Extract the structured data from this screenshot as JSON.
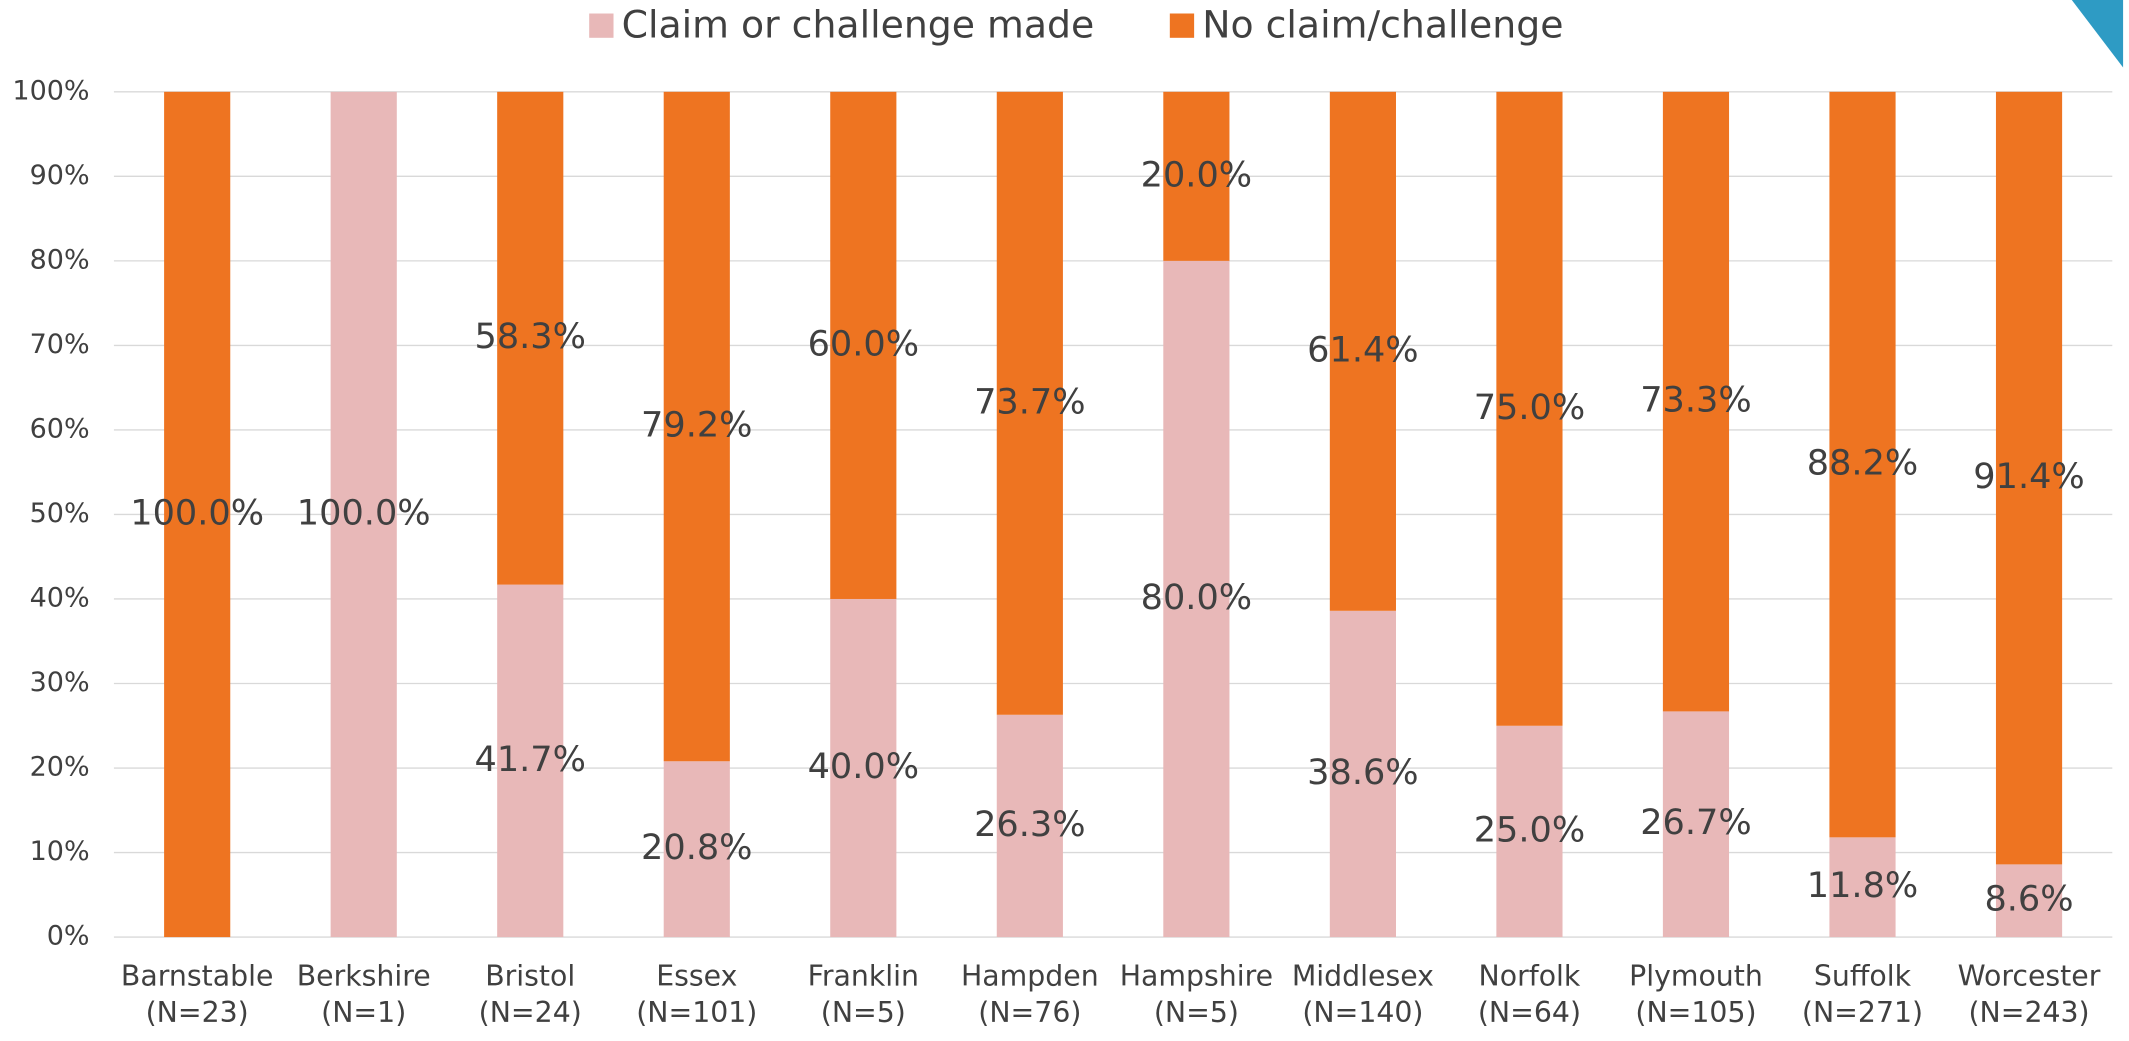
{
  "chart_data": {
    "type": "stacked_bar",
    "categories": [
      [
        "Barnstable",
        "(N=23)"
      ],
      [
        "Berkshire",
        "(N=1)"
      ],
      [
        "Bristol",
        "(N=24)"
      ],
      [
        "Essex",
        "(N=101)"
      ],
      [
        "Franklin",
        "(N=5)"
      ],
      [
        "Hampden",
        "(N=76)"
      ],
      [
        "Hampshire",
        "(N=5)"
      ],
      [
        "Middlesex",
        "(N=140)"
      ],
      [
        "Norfolk",
        "(N=64)"
      ],
      [
        "Plymouth",
        "(N=105)"
      ],
      [
        "Suffolk",
        "(N=271)"
      ],
      [
        "Worcester",
        "(N=243)"
      ]
    ],
    "series": [
      {
        "name": "Claim or challenge made",
        "color": "#e8b8b8",
        "values": [
          0,
          100,
          41.7,
          20.8,
          40,
          26.3,
          80,
          38.6,
          25,
          26.7,
          11.8,
          8.6
        ],
        "value_labels": [
          null,
          "100.0%",
          "41.7%",
          "20.8%",
          "40.0%",
          "26.3%",
          "80.0%",
          "38.6%",
          "25.0%",
          "26.7%",
          "11.8%",
          "8.6%"
        ]
      },
      {
        "name": "No claim/challenge",
        "color": "#ee7421",
        "values": [
          100,
          0,
          58.3,
          79.2,
          60,
          73.7,
          20,
          61.4,
          75,
          73.3,
          88.2,
          91.4
        ],
        "value_labels": [
          "100.0%",
          null,
          "58.3%",
          "79.2%",
          "60.0%",
          "73.7%",
          "20.0%",
          "61.4%",
          "75.0%",
          "73.3%",
          "88.2%",
          "91.4%"
        ]
      }
    ],
    "ylim": [
      0,
      100
    ],
    "yticks": [
      {
        "value": 0,
        "label": "0%"
      },
      {
        "value": 10,
        "label": "10%"
      },
      {
        "value": 20,
        "label": "20%"
      },
      {
        "value": 30,
        "label": "30%"
      },
      {
        "value": 40,
        "label": "40%"
      },
      {
        "value": 50,
        "label": "50%"
      },
      {
        "value": 60,
        "label": "60%"
      },
      {
        "value": 70,
        "label": "70%"
      },
      {
        "value": 80,
        "label": "80%"
      },
      {
        "value": 90,
        "label": "90%"
      },
      {
        "value": 100,
        "label": "100%"
      }
    ],
    "grid": true,
    "legend": "top"
  }
}
